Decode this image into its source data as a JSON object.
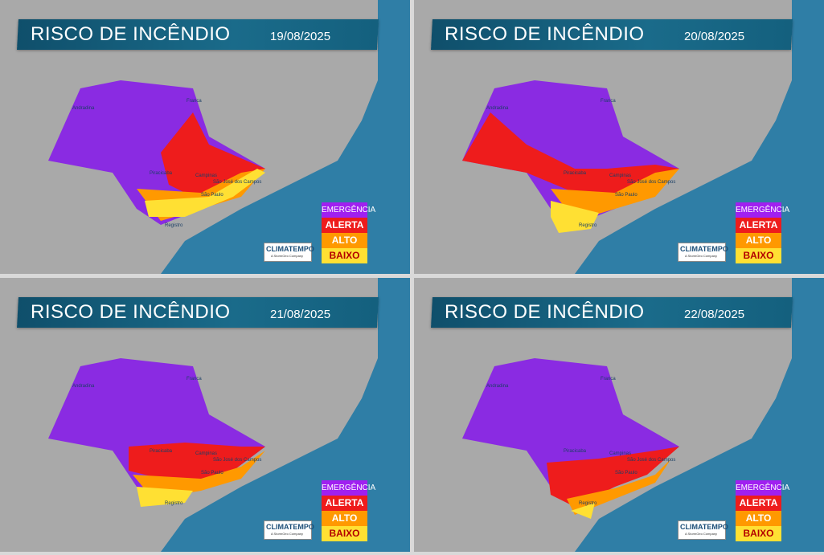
{
  "colors": {
    "sea": "#2f7ea6",
    "land": "#a9a9a9",
    "emergencia": "#8a2be2",
    "alerta": "#ee1c1c",
    "alto": "#ff9900",
    "baixo": "#ffe033",
    "banner": "#125a78"
  },
  "legend": {
    "levels": [
      {
        "label": "EMERGÊNCIA",
        "color": "#a020f0"
      },
      {
        "label": "ALERTA",
        "color": "#ee1c1c"
      },
      {
        "label": "ALTO",
        "color": "#ff9900"
      },
      {
        "label": "BAIXO",
        "color": "#ffe033"
      }
    ]
  },
  "logo": {
    "name": "CLIMATEMPO",
    "tagline": "A StormGeo Company"
  },
  "panels": [
    {
      "title": "RISCO DE INCÊNDIO",
      "date": "19/08/2025",
      "cities": {
        "c1": "Andradina",
        "c2": "Franca",
        "c3": "Piracicaba",
        "c4": "Campinas",
        "c5": "São José dos Campos",
        "c6": "São Paulo",
        "c7": "Registro"
      }
    },
    {
      "title": "RISCO DE INCÊNDIO",
      "date": "20/08/2025",
      "cities": {
        "c1": "Andradina",
        "c2": "Franca",
        "c3": "Piracicaba",
        "c4": "Campinas",
        "c5": "São José dos Campos",
        "c6": "São Paulo",
        "c7": "Registro"
      }
    },
    {
      "title": "RISCO DE INCÊNDIO",
      "date": "21/08/2025",
      "cities": {
        "c1": "Andradina",
        "c2": "Franca",
        "c3": "Piracicaba",
        "c4": "Campinas",
        "c5": "São José dos Campos",
        "c6": "São Paulo",
        "c7": "Registro"
      }
    },
    {
      "title": "RISCO DE INCÊNDIO",
      "date": "22/08/2025",
      "cities": {
        "c1": "Andradina",
        "c2": "Franca",
        "c3": "Piracicaba",
        "c4": "Campinas",
        "c5": "São José dos Campos",
        "c6": "São Paulo",
        "c7": "Registro"
      }
    }
  ]
}
